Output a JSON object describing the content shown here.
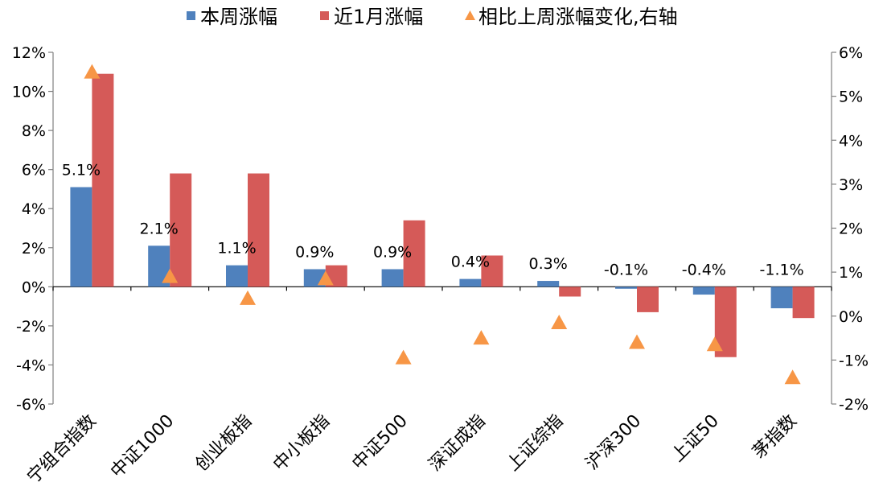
{
  "chart_data": {
    "type": "bar",
    "categories": [
      "宁组合指数",
      "中证1000",
      "创业板指",
      "中小板指",
      "中证500",
      "深证成指",
      "上证综指",
      "沪深300",
      "上证50",
      "茅指数"
    ],
    "series": [
      {
        "name": "本周涨幅",
        "axis": "left",
        "kind": "bar",
        "color": "#4F81BD",
        "values": [
          5.1,
          2.1,
          1.1,
          0.9,
          0.9,
          0.4,
          0.3,
          -0.1,
          -0.4,
          -1.1
        ],
        "data_labels": [
          "5.1%",
          "2.1%",
          "1.1%",
          "0.9%",
          "0.9%",
          "0.4%",
          "0.3%",
          "-0.1%",
          "-0.4%",
          "-1.1%"
        ]
      },
      {
        "name": "近1月涨幅",
        "axis": "left",
        "kind": "bar",
        "color": "#D55A58",
        "values": [
          10.9,
          5.8,
          5.8,
          1.1,
          3.4,
          1.6,
          -0.5,
          -1.3,
          -3.6,
          -1.6
        ]
      },
      {
        "name": "相比上周涨幅变化,右轴",
        "axis": "right",
        "kind": "scatter",
        "color": "#F79646",
        "values": [
          5.55,
          0.9,
          0.4,
          0.85,
          -0.95,
          -0.5,
          -0.15,
          -0.6,
          -0.65,
          -1.4
        ]
      }
    ],
    "y_left": {
      "min": -6,
      "max": 12,
      "step": 2,
      "tick_labels": [
        "-6%",
        "-4%",
        "-2%",
        "0%",
        "2%",
        "4%",
        "6%",
        "8%",
        "10%",
        "12%"
      ]
    },
    "y_right": {
      "min": -2,
      "max": 6,
      "step": 1,
      "tick_labels": [
        "-2%",
        "-1%",
        "0%",
        "1%",
        "2%",
        "3%",
        "4%",
        "5%",
        "6%"
      ]
    },
    "legend_position": "top",
    "grid": false
  }
}
